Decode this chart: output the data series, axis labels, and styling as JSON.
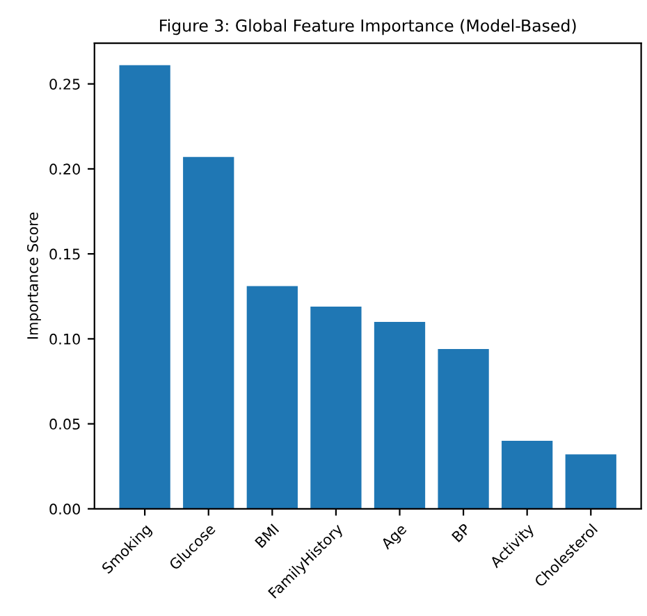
{
  "chart_data": {
    "type": "bar",
    "title": "Figure 3: Global Feature Importance (Model-Based)",
    "ylabel": "Importance Score",
    "categories": [
      "Smoking",
      "Glucose",
      "BMI",
      "FamilyHistory",
      "Age",
      "BP",
      "Activity",
      "Cholesterol"
    ],
    "values": [
      0.261,
      0.207,
      0.131,
      0.119,
      0.11,
      0.094,
      0.04,
      0.032
    ],
    "color": "#1f77b4",
    "ylim": [
      0,
      0.274
    ],
    "yticks": [
      {
        "value": 0,
        "label": "0.00"
      },
      {
        "value": 0.05,
        "label": "0.05"
      },
      {
        "value": 0.1,
        "label": "0.10"
      },
      {
        "value": 0.15,
        "label": "0.15"
      },
      {
        "value": 0.2,
        "label": "0.20"
      },
      {
        "value": 0.25,
        "label": "0.25"
      }
    ],
    "grid": false,
    "legend": false
  }
}
